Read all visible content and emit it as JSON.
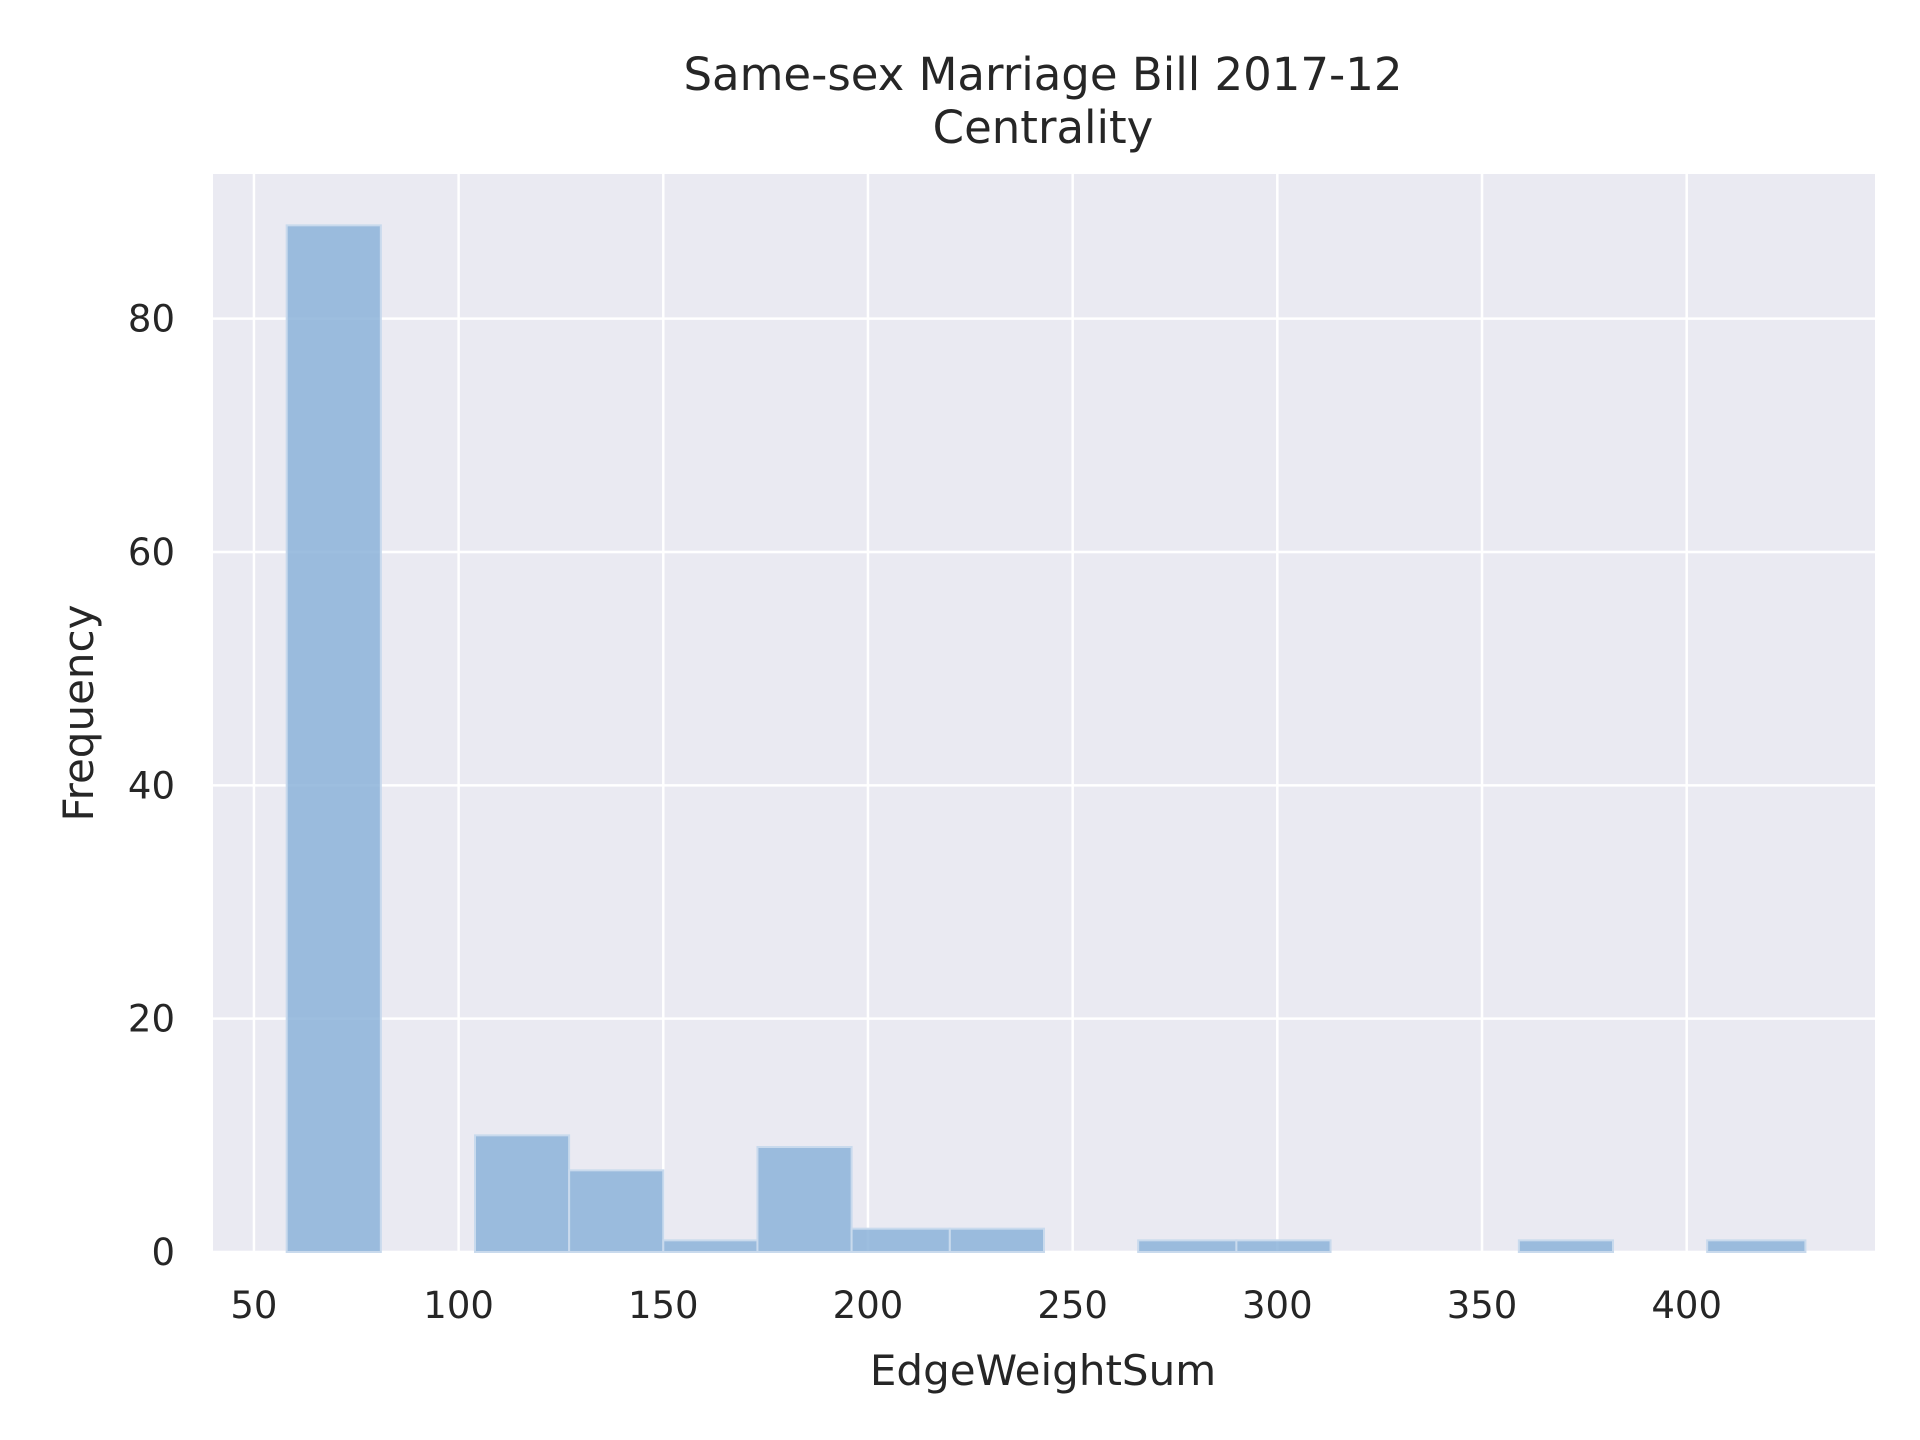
{
  "chart_data": {
    "type": "bar",
    "title": "Same-sex Marriage Bill 2017-12",
    "subtitle": "Centrality",
    "xlabel": "EdgeWeightSum",
    "ylabel": "Frequency",
    "xlim": [
      40,
      446
    ],
    "ylim": [
      0,
      92.4
    ],
    "xticks": [
      50,
      100,
      150,
      200,
      250,
      300,
      350,
      400
    ],
    "yticks": [
      0,
      20,
      40,
      60,
      80
    ],
    "bins": [
      {
        "start": 58,
        "end": 81,
        "count": 88
      },
      {
        "start": 81,
        "end": 104,
        "count": 0
      },
      {
        "start": 104,
        "end": 127,
        "count": 10
      },
      {
        "start": 127,
        "end": 150,
        "count": 7
      },
      {
        "start": 150,
        "end": 173,
        "count": 1
      },
      {
        "start": 173,
        "end": 196,
        "count": 9
      },
      {
        "start": 196,
        "end": 220,
        "count": 2
      },
      {
        "start": 220,
        "end": 243,
        "count": 2
      },
      {
        "start": 243,
        "end": 266,
        "count": 0
      },
      {
        "start": 266,
        "end": 290,
        "count": 1
      },
      {
        "start": 290,
        "end": 313,
        "count": 1
      },
      {
        "start": 313,
        "end": 336,
        "count": 0
      },
      {
        "start": 336,
        "end": 359,
        "count": 0
      },
      {
        "start": 359,
        "end": 382,
        "count": 1
      },
      {
        "start": 382,
        "end": 405,
        "count": 0
      },
      {
        "start": 405,
        "end": 429,
        "count": 1
      }
    ],
    "grid": true,
    "colors": {
      "background": "#eaeaf2",
      "grid": "#ffffff",
      "bar": "#8cb3d9",
      "bar_edge": "#c9daed",
      "text": "#262626"
    }
  }
}
